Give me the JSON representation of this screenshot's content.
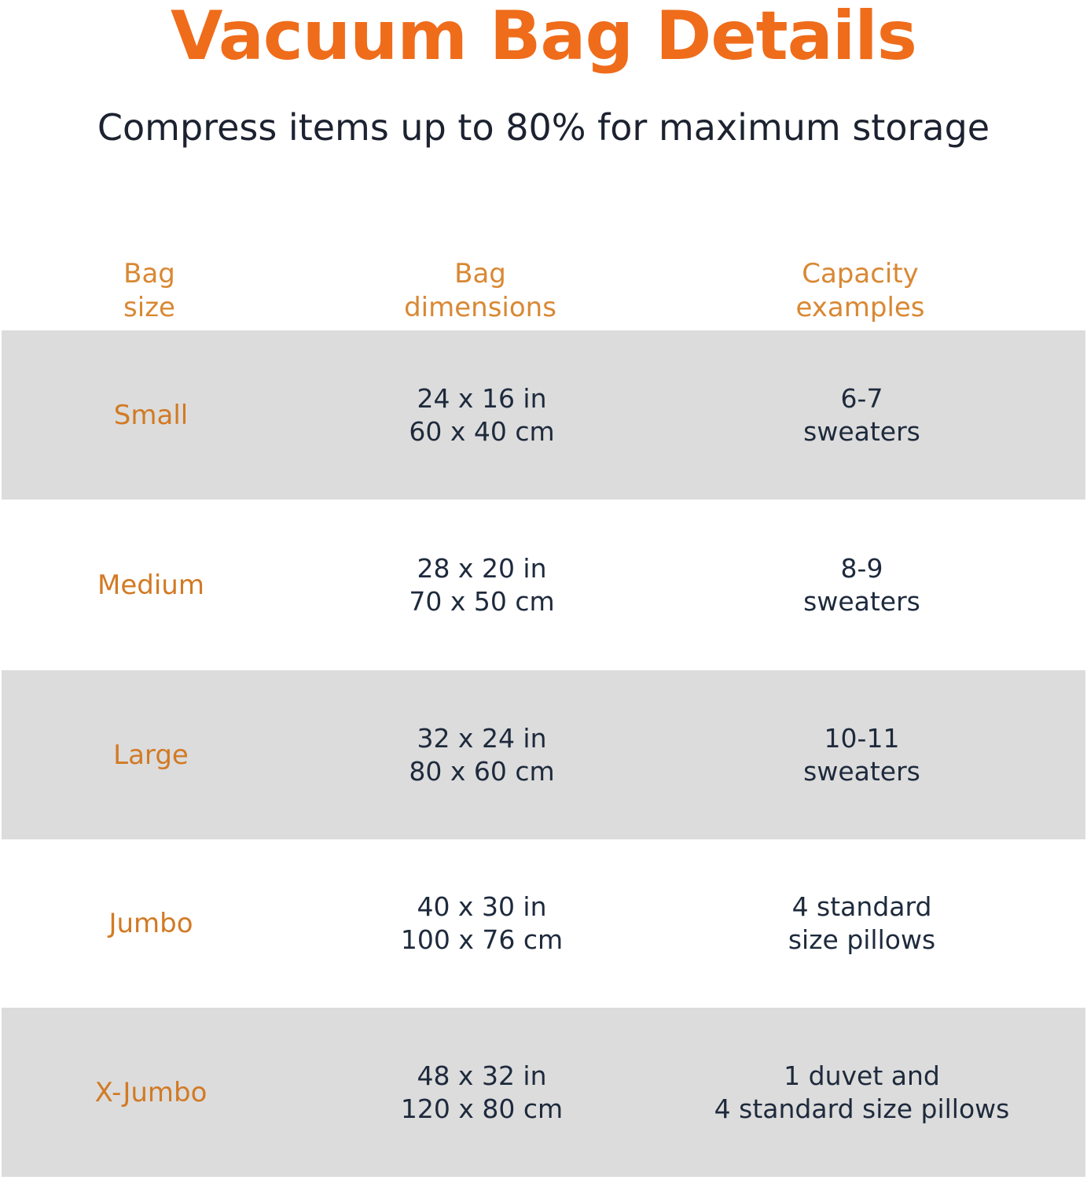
{
  "title": "Vacuum Bag Details",
  "subtitle": "Compress items up to 80% for maximum storage",
  "colors": {
    "title": "#ef6c1b",
    "header": "#d98834",
    "size_label": "#d27a24",
    "body_text": "#1e2a3c",
    "shaded_row": "#dcdcdc"
  },
  "table": {
    "headers": [
      "Bag\nsize",
      "Bag\ndimensions",
      "Capacity\nexamples"
    ],
    "rows": [
      {
        "size": "Small",
        "dimensions": "24 x 16 in\n60 x 40 cm",
        "capacity": "6-7\nsweaters",
        "shaded": true
      },
      {
        "size": "Medium",
        "dimensions": "28 x 20 in\n70 x 50 cm",
        "capacity": "8-9\nsweaters",
        "shaded": false
      },
      {
        "size": "Large",
        "dimensions": "32 x 24 in\n80 x 60 cm",
        "capacity": "10-11\nsweaters",
        "shaded": true
      },
      {
        "size": "Jumbo",
        "dimensions": "40 x 30 in\n100 x 76 cm",
        "capacity": "4 standard\nsize pillows",
        "shaded": false
      },
      {
        "size": "X-Jumbo",
        "dimensions": "48 x 32 in\n120 x 80 cm",
        "capacity": "1 duvet and\n4 standard size pillows",
        "shaded": true
      }
    ]
  }
}
